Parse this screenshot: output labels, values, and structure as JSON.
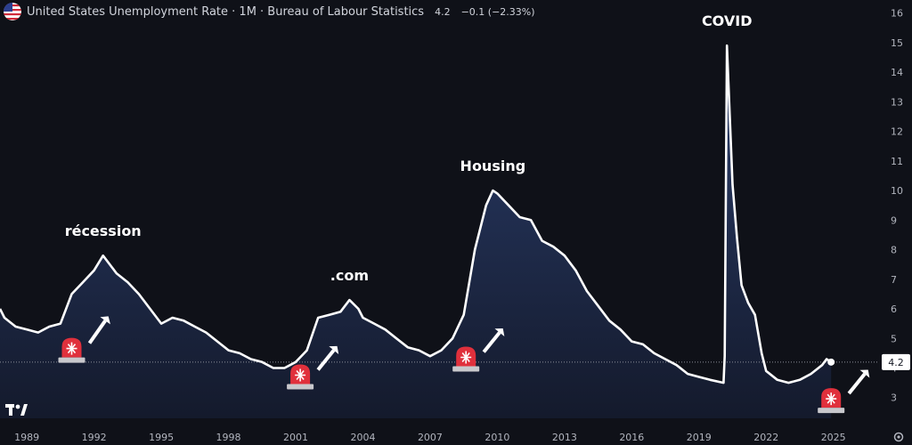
{
  "header": {
    "title": "United States Unemployment Rate · 1M · Bureau of Labour Statistics",
    "last_value": "4.2",
    "change": "−0.1 (−2.33%)",
    "flag_icon": "us-flag-icon"
  },
  "colors": {
    "background": "#0f1118",
    "line": "#ffffff",
    "area_top": "#2a3d6b",
    "area_bottom": "#141a2c",
    "siren_red": "#e0303c",
    "axis_text": "#b2b5be"
  },
  "price_tag": "4.2",
  "logo_icon": "tradingview-logo-icon",
  "settings_icon": "gear-icon",
  "chart_data": {
    "type": "area",
    "title": "United States Unemployment Rate",
    "x_range": [
      1987.8,
      2027.0
    ],
    "y_range": [
      2.3,
      16.2
    ],
    "y_ticks": [
      3,
      4,
      5,
      6,
      7,
      8,
      9,
      10,
      11,
      12,
      13,
      14,
      15,
      16
    ],
    "x_ticks": [
      "1989",
      "1992",
      "1995",
      "1998",
      "2001",
      "2004",
      "2007",
      "2010",
      "2013",
      "2016",
      "2019",
      "2022",
      "2025"
    ],
    "series": [
      {
        "points": [
          [
            1987.8,
            6.0
          ],
          [
            1988.0,
            5.7
          ],
          [
            1988.5,
            5.4
          ],
          [
            1989.0,
            5.3
          ],
          [
            1989.5,
            5.2
          ],
          [
            1990.0,
            5.4
          ],
          [
            1990.5,
            5.5
          ],
          [
            1991.0,
            6.5
          ],
          [
            1991.5,
            6.9
          ],
          [
            1992.0,
            7.3
          ],
          [
            1992.4,
            7.8
          ],
          [
            1992.8,
            7.4
          ],
          [
            1993.0,
            7.2
          ],
          [
            1993.5,
            6.9
          ],
          [
            1994.0,
            6.5
          ],
          [
            1994.5,
            6.0
          ],
          [
            1995.0,
            5.5
          ],
          [
            1995.5,
            5.7
          ],
          [
            1996.0,
            5.6
          ],
          [
            1996.5,
            5.4
          ],
          [
            1997.0,
            5.2
          ],
          [
            1997.5,
            4.9
          ],
          [
            1998.0,
            4.6
          ],
          [
            1998.5,
            4.5
          ],
          [
            1999.0,
            4.3
          ],
          [
            1999.5,
            4.2
          ],
          [
            2000.0,
            4.0
          ],
          [
            2000.5,
            4.0
          ],
          [
            2001.0,
            4.2
          ],
          [
            2001.5,
            4.6
          ],
          [
            2002.0,
            5.7
          ],
          [
            2002.5,
            5.8
          ],
          [
            2003.0,
            5.9
          ],
          [
            2003.4,
            6.3
          ],
          [
            2003.8,
            6.0
          ],
          [
            2004.0,
            5.7
          ],
          [
            2004.5,
            5.5
          ],
          [
            2005.0,
            5.3
          ],
          [
            2005.5,
            5.0
          ],
          [
            2006.0,
            4.7
          ],
          [
            2006.5,
            4.6
          ],
          [
            2007.0,
            4.4
          ],
          [
            2007.5,
            4.6
          ],
          [
            2008.0,
            5.0
          ],
          [
            2008.5,
            5.8
          ],
          [
            2009.0,
            8.0
          ],
          [
            2009.5,
            9.5
          ],
          [
            2009.8,
            10.0
          ],
          [
            2010.0,
            9.9
          ],
          [
            2010.5,
            9.5
          ],
          [
            2011.0,
            9.1
          ],
          [
            2011.5,
            9.0
          ],
          [
            2012.0,
            8.3
          ],
          [
            2012.5,
            8.1
          ],
          [
            2013.0,
            7.8
          ],
          [
            2013.5,
            7.3
          ],
          [
            2014.0,
            6.6
          ],
          [
            2014.5,
            6.1
          ],
          [
            2015.0,
            5.6
          ],
          [
            2015.5,
            5.3
          ],
          [
            2016.0,
            4.9
          ],
          [
            2016.5,
            4.8
          ],
          [
            2017.0,
            4.5
          ],
          [
            2017.5,
            4.3
          ],
          [
            2018.0,
            4.1
          ],
          [
            2018.5,
            3.8
          ],
          [
            2019.0,
            3.7
          ],
          [
            2019.5,
            3.6
          ],
          [
            2020.1,
            3.5
          ],
          [
            2020.15,
            4.4
          ],
          [
            2020.25,
            14.9
          ],
          [
            2020.5,
            10.2
          ],
          [
            2020.7,
            8.4
          ],
          [
            2020.9,
            6.8
          ],
          [
            2021.2,
            6.2
          ],
          [
            2021.5,
            5.8
          ],
          [
            2021.8,
            4.5
          ],
          [
            2022.0,
            3.9
          ],
          [
            2022.5,
            3.6
          ],
          [
            2023.0,
            3.5
          ],
          [
            2023.5,
            3.6
          ],
          [
            2024.0,
            3.8
          ],
          [
            2024.5,
            4.1
          ],
          [
            2024.7,
            4.3
          ],
          [
            2024.9,
            4.2
          ]
        ]
      }
    ],
    "annotations": [
      {
        "text": "récession",
        "x": 1992.4,
        "y": 7.8
      },
      {
        "text": ".com",
        "x": 2003.4,
        "y": 6.3
      },
      {
        "text": "Housing",
        "x": 2009.8,
        "y": 10.0
      },
      {
        "text": "COVID",
        "x": 2020.25,
        "y": 14.9
      }
    ],
    "markers": [
      {
        "name": "siren-icon",
        "x": 1991.0,
        "y": 4.6,
        "arrow_dx": 0.9,
        "arrow_dy": 1.0
      },
      {
        "name": "siren-icon",
        "x": 2001.2,
        "y": 3.7,
        "arrow_dx": 0.9,
        "arrow_dy": 0.9
      },
      {
        "name": "siren-icon",
        "x": 2008.6,
        "y": 4.3,
        "arrow_dx": 0.9,
        "arrow_dy": 0.9
      },
      {
        "name": "siren-icon",
        "x": 2024.9,
        "y": 2.9,
        "arrow_dx": 0.9,
        "arrow_dy": 0.9
      }
    ]
  }
}
